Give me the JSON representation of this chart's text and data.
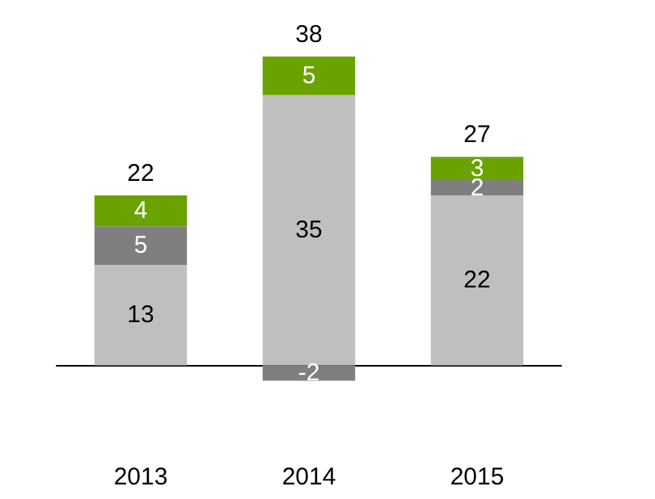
{
  "chart_data": {
    "type": "bar",
    "stacked": true,
    "data_labels": true,
    "categories": [
      "2013",
      "2014",
      "2015"
    ],
    "series": [
      {
        "color": "#bfbfbf",
        "values": [
          13,
          35,
          22
        ]
      },
      {
        "color": "#7f7f7f",
        "values": [
          5,
          -2,
          2
        ]
      },
      {
        "color": "#6aa300",
        "values": [
          4,
          5,
          3
        ]
      }
    ],
    "totals": [
      "22",
      "38",
      "27"
    ]
  }
}
